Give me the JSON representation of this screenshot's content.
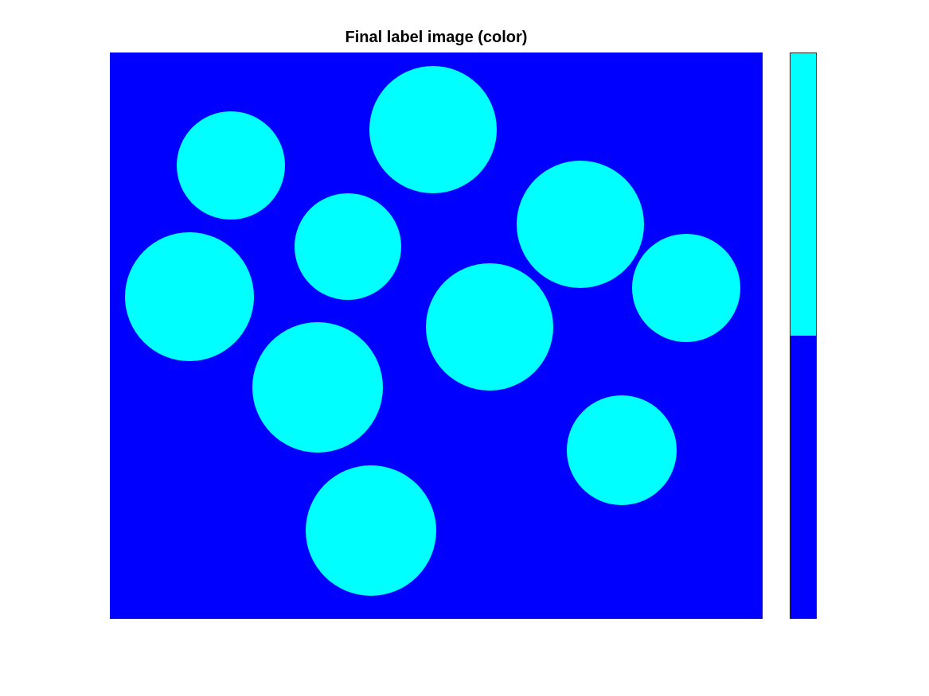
{
  "figure": {
    "title": "Final label image (color)"
  },
  "image": {
    "colors": {
      "background": "#0000ff",
      "foreground": "#00ffff"
    },
    "objects": [
      {
        "id": 1,
        "label": 1
      },
      {
        "id": 2,
        "label": 1
      },
      {
        "id": 3,
        "label": 1
      },
      {
        "id": 4,
        "label": 1
      },
      {
        "id": 5,
        "label": 1
      },
      {
        "id": 6,
        "label": 1
      },
      {
        "id": 7,
        "label": 1
      },
      {
        "id": 8,
        "label": 1
      },
      {
        "id": 9,
        "label": 1
      },
      {
        "id": 10,
        "label": 1
      }
    ]
  },
  "colorbar": {
    "levels": 2,
    "colors": [
      "#0000ff",
      "#00ffff"
    ]
  }
}
